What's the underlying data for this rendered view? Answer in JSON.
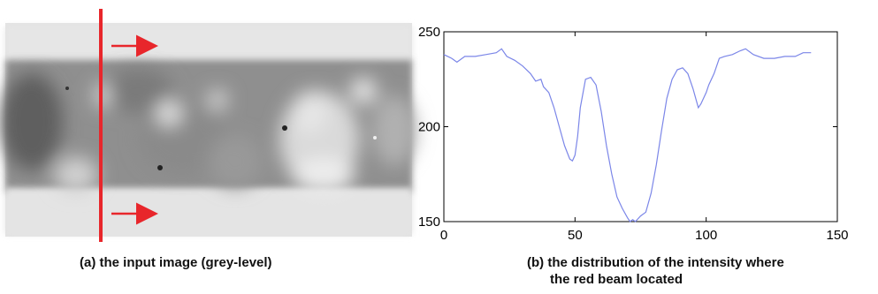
{
  "panel_a": {
    "caption": "(a) the input image (grey-level)"
  },
  "panel_b": {
    "caption_line1": "(b) the distribution of the intensity where",
    "caption_line2": "the red beam located"
  },
  "colors": {
    "beam": "#e8262b",
    "line": "#7b86e8",
    "axis": "#000000"
  },
  "chart_data": {
    "type": "line",
    "title": "",
    "xlabel": "",
    "ylabel": "",
    "xlim": [
      0,
      150
    ],
    "ylim": [
      150,
      250
    ],
    "xticks": [
      0,
      50,
      100,
      150
    ],
    "yticks": [
      150,
      200,
      250
    ],
    "grid": false,
    "series": [
      {
        "x": [
          0,
          3,
          5,
          8,
          12,
          16,
          20,
          22,
          24,
          27,
          30,
          33,
          35,
          37,
          38,
          40,
          42,
          44,
          46,
          48,
          49,
          50,
          51,
          52,
          54,
          56,
          58,
          60,
          62,
          64,
          66,
          68,
          70,
          71,
          72,
          73,
          75,
          77,
          79,
          81,
          83,
          85,
          87,
          89,
          91,
          93,
          95,
          96,
          97,
          98,
          100,
          101,
          103,
          105,
          107,
          110,
          113,
          115,
          118,
          122,
          126,
          130,
          134,
          137,
          140
        ],
        "values": [
          238,
          236,
          234,
          237,
          237,
          238,
          239,
          241,
          237,
          235,
          232,
          228,
          224,
          225,
          221,
          218,
          210,
          200,
          190,
          183,
          182,
          185,
          195,
          210,
          225,
          226,
          222,
          208,
          190,
          175,
          163,
          157,
          152,
          150,
          151,
          150,
          153,
          155,
          165,
          180,
          198,
          215,
          225,
          230,
          231,
          228,
          220,
          215,
          210,
          212,
          218,
          222,
          228,
          236,
          237,
          238,
          240,
          241,
          238,
          236,
          236,
          237,
          237,
          239,
          239
        ]
      }
    ]
  }
}
